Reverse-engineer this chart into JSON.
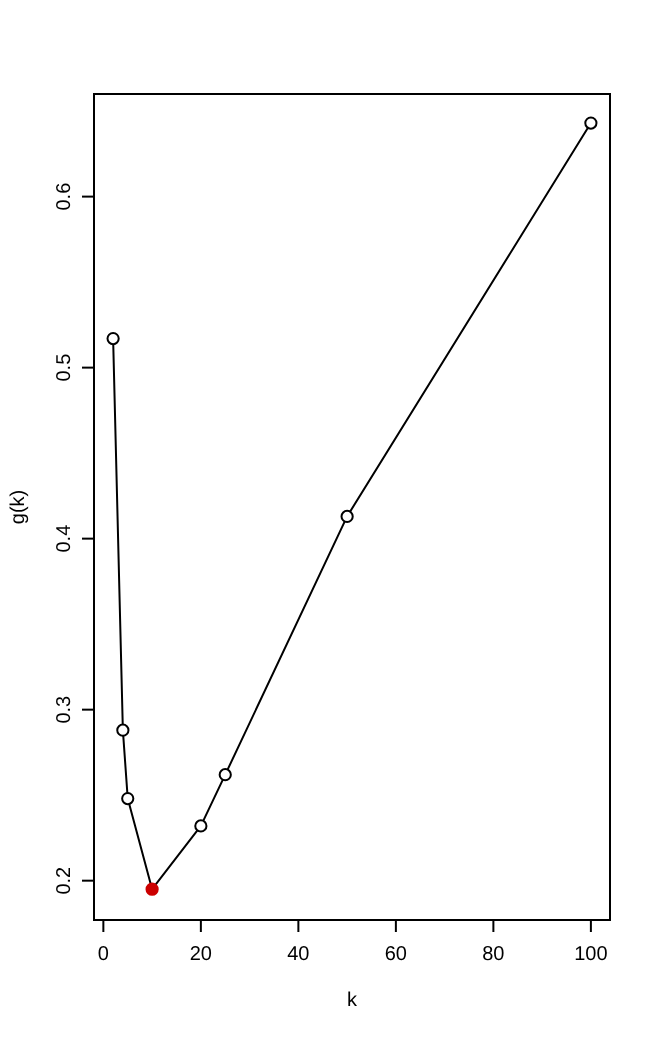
{
  "chart_data": {
    "type": "line",
    "xlabel": "k",
    "ylabel": "g(k)",
    "x": [
      2,
      4,
      5,
      10,
      20,
      25,
      50,
      100
    ],
    "series": [
      {
        "color": "#000000",
        "colors": [
          "#ffffff",
          "#ffffff",
          "#ffffff",
          "#cc0000",
          "#ffffff",
          "#ffffff",
          "#ffffff",
          "#ffffff"
        ],
        "values": [
          0.517,
          0.288,
          0.248,
          0.195,
          0.232,
          0.262,
          0.413,
          0.643
        ]
      }
    ],
    "xlim": [
      -1.92,
      103.92
    ],
    "ylim": [
      0.177,
      0.66
    ],
    "xticks": [
      0,
      20,
      40,
      60,
      80,
      100
    ],
    "yticks": [
      0.2,
      0.3,
      0.4,
      0.5,
      0.6
    ],
    "marker": "circle",
    "line_style": "solid"
  }
}
